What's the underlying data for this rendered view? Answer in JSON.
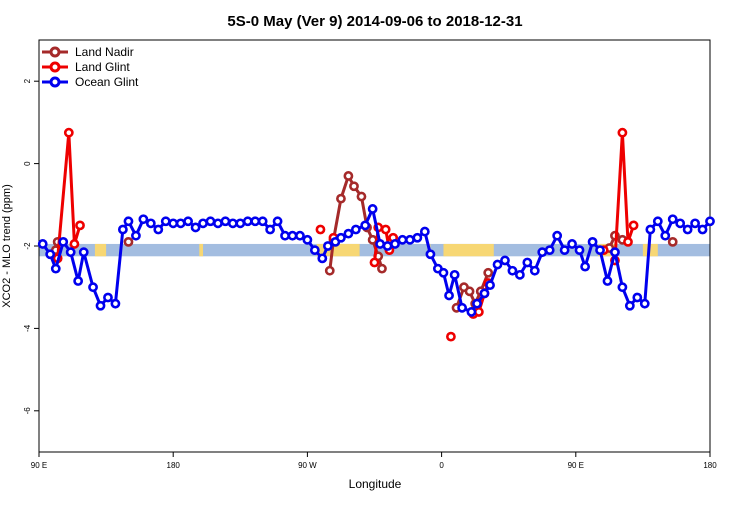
{
  "chart_data": {
    "type": "line",
    "title": "5S-0 May (Ver 9)   2014-09-06 to 2018-12-31",
    "xlabel": "Longitude",
    "ylabel": "XCO2 - MLO trend (ppm)",
    "xlim": [
      90,
      450
    ],
    "ylim": [
      -7,
      3
    ],
    "xticks": [
      {
        "value": 90,
        "label": "90 E"
      },
      {
        "value": 162,
        "label": "180"
      },
      {
        "value": 234,
        "label": "90 W"
      },
      {
        "value": 306,
        "label": "0"
      },
      {
        "value": 378,
        "label": "90 E"
      },
      {
        "value": 450,
        "label": "180"
      }
    ],
    "yticks": [
      {
        "value": 2,
        "label": "2"
      },
      {
        "value": 0,
        "label": "0"
      },
      {
        "value": -2,
        "label": "-2"
      },
      {
        "value": -4,
        "label": "-4"
      },
      {
        "value": -6,
        "label": "-6"
      }
    ],
    "grid": false,
    "legend_position": "top-left",
    "background_band": {
      "y_range": [
        -2.25,
        -1.95
      ],
      "colors": {
        "ocean": "#a3bde0",
        "land": "#f7d774"
      },
      "land_segments": [
        [
          120,
          126
        ],
        [
          176,
          178
        ],
        [
          239,
          262
        ],
        [
          299,
          300
        ],
        [
          307,
          334
        ],
        [
          390,
          399
        ],
        [
          414,
          422
        ]
      ]
    },
    "series": [
      {
        "name": "Land Nadir",
        "color": "#a52a2a",
        "segments": [
          [
            [
              99,
              -2.1
            ],
            [
              100,
              -1.9
            ]
          ],
          [
            [
              138,
              -1.9
            ]
          ],
          [
            [
              246,
              -2.6
            ],
            [
              248,
              -1.85
            ],
            [
              252,
              -0.85
            ],
            [
              256,
              -0.3
            ],
            [
              259,
              -0.55
            ],
            [
              263,
              -0.8
            ],
            [
              266,
              -1.55
            ],
            [
              269,
              -1.85
            ],
            [
              272,
              -2.25
            ],
            [
              274,
              -2.55
            ]
          ],
          [
            [
              314,
              -3.5
            ],
            [
              318,
              -3.0
            ],
            [
              321,
              -3.1
            ],
            [
              324,
              -3.4
            ],
            [
              327,
              -3.1
            ],
            [
              331,
              -2.65
            ]
          ],
          [
            [
              396,
              -2.05
            ],
            [
              399,
              -1.75
            ],
            [
              403,
              -1.85
            ]
          ],
          [
            [
              430,
              -1.9
            ]
          ]
        ]
      },
      {
        "name": "Land Glint",
        "color": "#ee0000",
        "segments": [
          [
            [
              100,
              -2.3
            ],
            [
              106,
              0.75
            ],
            [
              109,
              -1.95
            ],
            [
              112,
              -1.5
            ]
          ],
          [
            [
              241,
              -1.6
            ]
          ],
          [
            [
              248,
              -1.8
            ]
          ],
          [
            [
              270,
              -2.4
            ],
            [
              272,
              -1.55
            ],
            [
              276,
              -1.6
            ],
            [
              278,
              -2.1
            ],
            [
              280,
              -1.8
            ]
          ],
          [
            [
              311,
              -4.2
            ]
          ],
          [
            [
              323,
              -3.65
            ],
            [
              326,
              -3.6
            ],
            [
              329,
              -3.15
            ],
            [
              331,
              -2.9
            ]
          ],
          [
            [
              393,
              -2.1
            ]
          ],
          [
            [
              399,
              -2.35
            ],
            [
              403,
              0.75
            ],
            [
              406,
              -1.9
            ],
            [
              409,
              -1.5
            ]
          ]
        ]
      },
      {
        "name": "Ocean Glint",
        "color": "#0000ee",
        "segments": [
          [
            [
              92,
              -1.95
            ],
            [
              96,
              -2.2
            ],
            [
              99,
              -2.55
            ],
            [
              103,
              -1.9
            ],
            [
              107,
              -2.15
            ],
            [
              111,
              -2.85
            ],
            [
              114,
              -2.15
            ],
            [
              119,
              -3.0
            ],
            [
              123,
              -3.45
            ],
            [
              127,
              -3.25
            ],
            [
              131,
              -3.4
            ],
            [
              135,
              -1.6
            ],
            [
              138,
              -1.4
            ],
            [
              142,
              -1.75
            ],
            [
              146,
              -1.35
            ],
            [
              150,
              -1.45
            ],
            [
              154,
              -1.6
            ],
            [
              158,
              -1.4
            ],
            [
              162,
              -1.45
            ],
            [
              166,
              -1.45
            ],
            [
              170,
              -1.4
            ],
            [
              174,
              -1.55
            ],
            [
              178,
              -1.45
            ],
            [
              182,
              -1.4
            ],
            [
              186,
              -1.45
            ],
            [
              190,
              -1.4
            ],
            [
              194,
              -1.45
            ],
            [
              198,
              -1.45
            ],
            [
              202,
              -1.4
            ],
            [
              206,
              -1.4
            ],
            [
              210,
              -1.4
            ],
            [
              214,
              -1.6
            ],
            [
              218,
              -1.4
            ],
            [
              222,
              -1.75
            ],
            [
              226,
              -1.75
            ],
            [
              230,
              -1.75
            ],
            [
              234,
              -1.85
            ],
            [
              238,
              -2.1
            ],
            [
              242,
              -2.3
            ],
            [
              245,
              -2.0
            ],
            [
              249,
              -1.9
            ],
            [
              252,
              -1.8
            ],
            [
              256,
              -1.7
            ],
            [
              260,
              -1.6
            ],
            [
              265,
              -1.5
            ],
            [
              269,
              -1.1
            ],
            [
              273,
              -1.95
            ],
            [
              277,
              -2.0
            ],
            [
              281,
              -1.95
            ],
            [
              285,
              -1.85
            ],
            [
              289,
              -1.85
            ],
            [
              293,
              -1.8
            ],
            [
              297,
              -1.65
            ],
            [
              300,
              -2.2
            ],
            [
              304,
              -2.55
            ],
            [
              307,
              -2.65
            ],
            [
              310,
              -3.2
            ],
            [
              313,
              -2.7
            ],
            [
              317,
              -3.5
            ],
            [
              322,
              -3.6
            ],
            [
              325,
              -3.4
            ],
            [
              329,
              -3.15
            ],
            [
              332,
              -2.95
            ],
            [
              336,
              -2.45
            ],
            [
              340,
              -2.35
            ],
            [
              344,
              -2.6
            ],
            [
              348,
              -2.7
            ],
            [
              352,
              -2.4
            ],
            [
              356,
              -2.6
            ],
            [
              360,
              -2.15
            ],
            [
              364,
              -2.1
            ],
            [
              368,
              -1.75
            ],
            [
              372,
              -2.1
            ],
            [
              376,
              -1.95
            ],
            [
              380,
              -2.1
            ],
            [
              383,
              -2.5
            ],
            [
              387,
              -1.9
            ],
            [
              391,
              -2.1
            ],
            [
              395,
              -2.85
            ],
            [
              399,
              -2.15
            ],
            [
              403,
              -3.0
            ],
            [
              407,
              -3.45
            ],
            [
              411,
              -3.25
            ],
            [
              415,
              -3.4
            ],
            [
              418,
              -1.6
            ],
            [
              422,
              -1.4
            ],
            [
              426,
              -1.75
            ],
            [
              430,
              -1.35
            ],
            [
              434,
              -1.45
            ],
            [
              438,
              -1.6
            ],
            [
              442,
              -1.45
            ],
            [
              446,
              -1.6
            ],
            [
              450,
              -1.4
            ]
          ]
        ]
      }
    ]
  }
}
